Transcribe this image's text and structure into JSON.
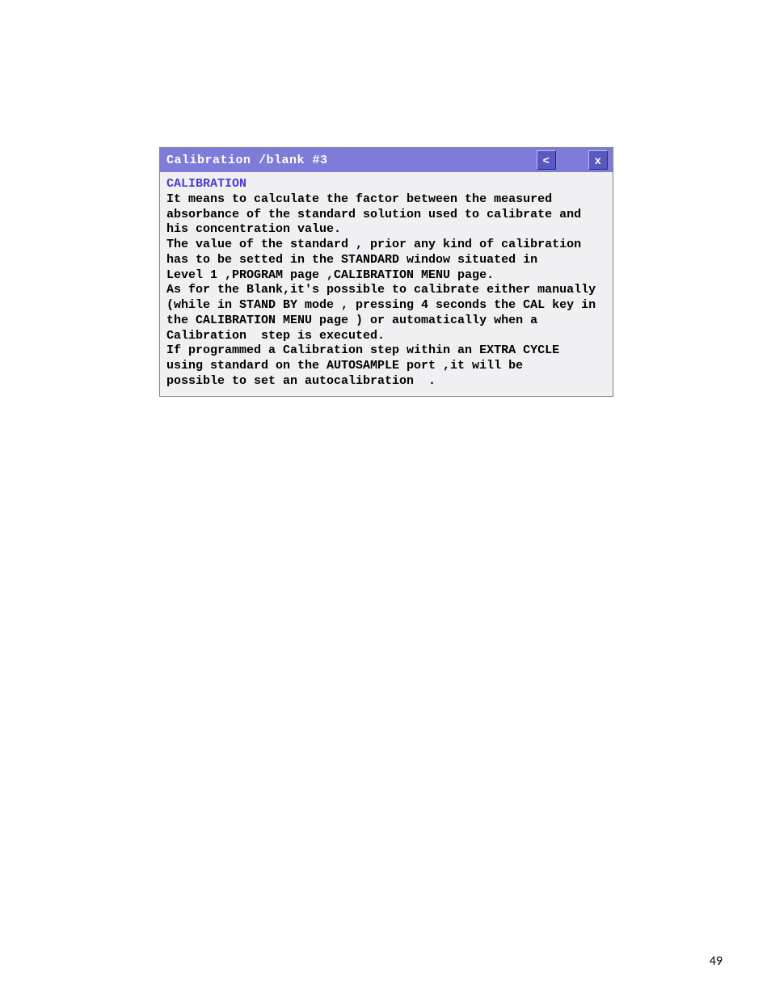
{
  "window": {
    "title": "Calibration /blank  #3",
    "back_button_label": "<",
    "close_button_label": "x",
    "titlebar_bg": "#7e7cd8",
    "titlebar_fg": "#ffffff",
    "button_bg": "#5a58c0",
    "content_bg": "#f0f0f2"
  },
  "content": {
    "heading": "CALIBRATION",
    "heading_color": "#4a3ccf",
    "body": "It means to calculate the factor between the measured\nabsorbance of the standard solution used to calibrate and\nhis concentration value.\nThe value of the standard , prior any kind of calibration\nhas to be setted in the STANDARD window situated in\nLevel 1 ,PROGRAM page ,CALIBRATION MENU page.\nAs for the Blank,it's possible to calibrate either manually\n(while in STAND BY mode , pressing 4 seconds the CAL key in\nthe CALIBRATION MENU page ) or automatically when a\nCalibration  step is executed.\nIf programmed a Calibration step within an EXTRA CYCLE\nusing standard on the AUTOSAMPLE port ,it will be\npossible to set an autocalibration  ."
  },
  "page": {
    "number": "49"
  }
}
